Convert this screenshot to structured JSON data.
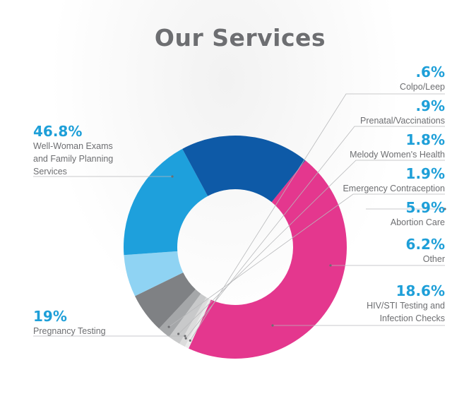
{
  "chart_data": {
    "type": "pie",
    "title": "Our Services",
    "slices": [
      {
        "label": "Well-Woman Exams and Family Planning Services",
        "name_lines": [
          "Well-Woman Exams",
          "and Family Planning",
          "Services"
        ],
        "value": 46.8,
        "display": "46.8%",
        "color": "#e4378e"
      },
      {
        "label": ".6% Colpo/Leep",
        "name_lines": [
          "Colpo/Leep"
        ],
        "value": 0.6,
        "display": ".6%",
        "color": "#ececec"
      },
      {
        "label": "Prenatal/Vaccinations",
        "name_lines": [
          "Prenatal/Vaccinations"
        ],
        "value": 0.9,
        "display": ".9%",
        "color": "#dcdcdc"
      },
      {
        "label": "Melody Women's Health",
        "name_lines": [
          "Melody Women's Health"
        ],
        "value": 1.8,
        "display": "1.8%",
        "color": "#c8c9ca"
      },
      {
        "label": "Emergency Contraception",
        "name_lines": [
          "Emergency Contraception"
        ],
        "value": 1.9,
        "display": "1.9%",
        "color": "#a5a7a9"
      },
      {
        "label": "Abortion Care",
        "name_lines": [
          "Abortion Care"
        ],
        "value": 5.9,
        "display": "5.9%",
        "color": "#7f8184"
      },
      {
        "label": "Other",
        "name_lines": [
          "Other"
        ],
        "value": 6.2,
        "display": "6.2%",
        "color": "#8fd3f3"
      },
      {
        "label": "HIV/STI Testing and Infection Checks",
        "name_lines": [
          "HIV/STI Testing and",
          "Infection Checks"
        ],
        "value": 18.6,
        "display": "18.6%",
        "color": "#1ea0dc"
      },
      {
        "label": "Pregnancy Testing",
        "name_lines": [
          "Pregnancy Testing"
        ],
        "value": 19,
        "display": "19%",
        "color": "#0e5aa7"
      }
    ]
  }
}
